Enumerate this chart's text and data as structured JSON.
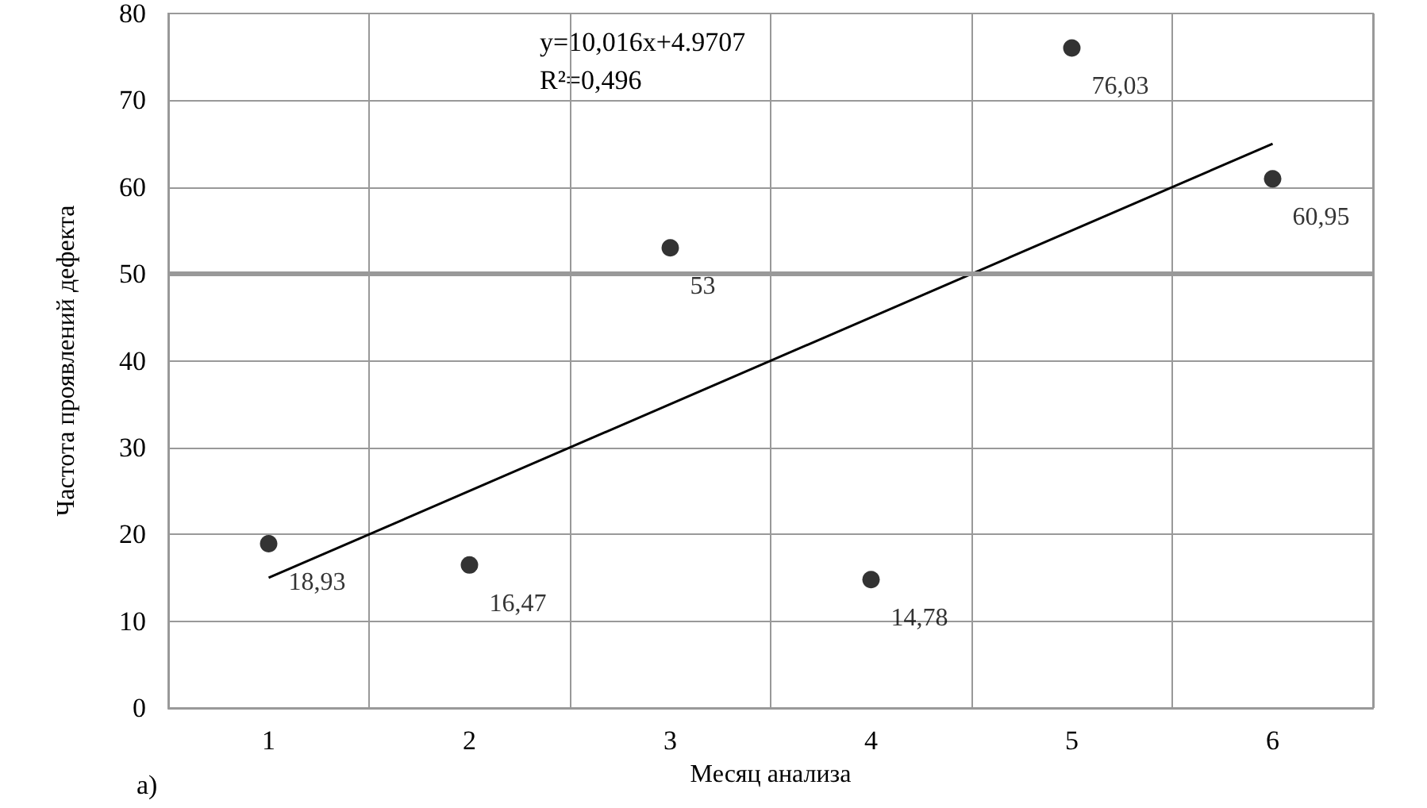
{
  "chart_data": {
    "type": "scatter",
    "xlabel": "Месяц анализа",
    "ylabel": "Частота проявлений дефекта",
    "categories": [
      "1",
      "2",
      "3",
      "4",
      "5",
      "6"
    ],
    "series": [
      {
        "color": "#000000",
        "marker": "circle",
        "values": [
          18.93,
          16.47,
          53,
          14.78,
          76.03,
          60.95
        ],
        "value_labels": [
          "18,93",
          "16,47",
          "53",
          "14,78",
          "76,03",
          "60,95"
        ]
      },
      {
        "type": "line",
        "color": "#000000",
        "marker": "none",
        "x": [
          "1",
          "6"
        ],
        "values": [
          15,
          65
        ]
      }
    ],
    "ylim": [
      0,
      80
    ],
    "yticks": [
      0,
      10,
      20,
      30,
      40,
      50,
      60,
      70,
      80
    ],
    "grid": true,
    "ref_lines": [
      {
        "axis": "y",
        "value": 50,
        "color": "#999999"
      }
    ],
    "annotations": [
      "y=10,016x+4.9707",
      "R²=0,496",
      "а)"
    ]
  }
}
